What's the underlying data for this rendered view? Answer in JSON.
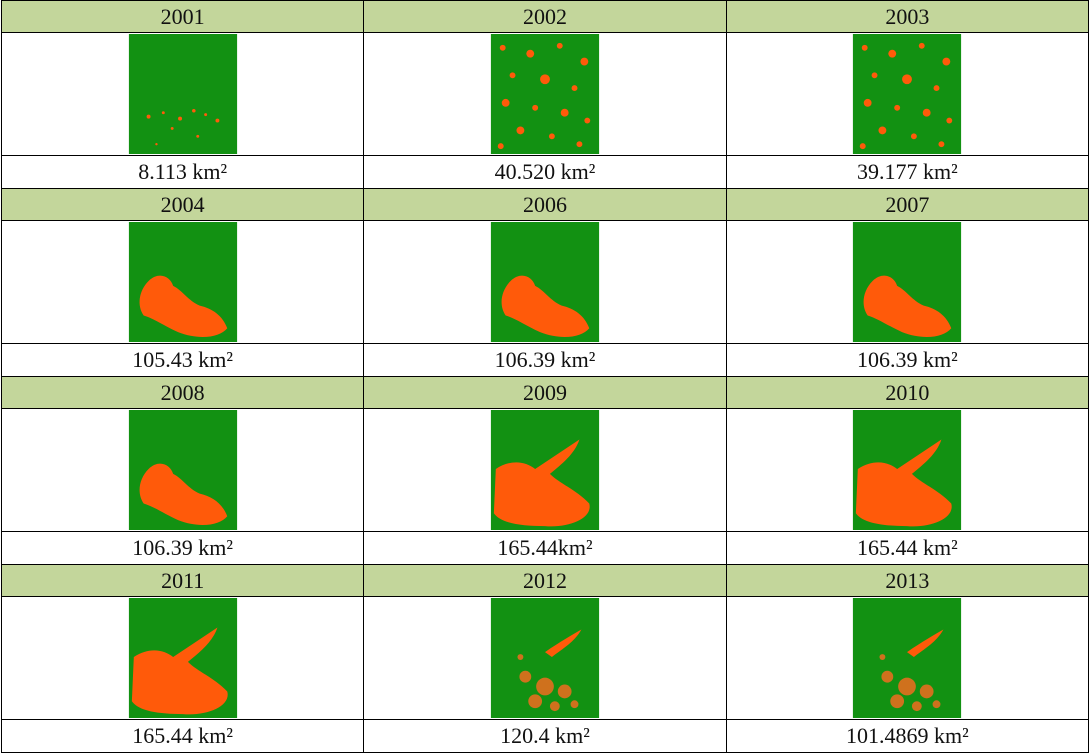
{
  "table": {
    "rows": [
      {
        "years": [
          "2001",
          "2002",
          "2003"
        ],
        "areas": [
          "8.113 km²",
          "40.520 km²",
          "39.177 km²"
        ]
      },
      {
        "years": [
          "2004",
          "2006",
          "2007"
        ],
        "areas": [
          "105.43 km²",
          "106.39 km²",
          "106.39 km²"
        ]
      },
      {
        "years": [
          "2008",
          "2009",
          "2010"
        ],
        "areas": [
          "106.39 km²",
          "165.44km²",
          "165.44 km²"
        ]
      },
      {
        "years": [
          "2011",
          "2012",
          "2013"
        ],
        "areas": [
          "165.44 km²",
          "120.4 km²",
          "101.4869 km²"
        ]
      }
    ]
  }
}
